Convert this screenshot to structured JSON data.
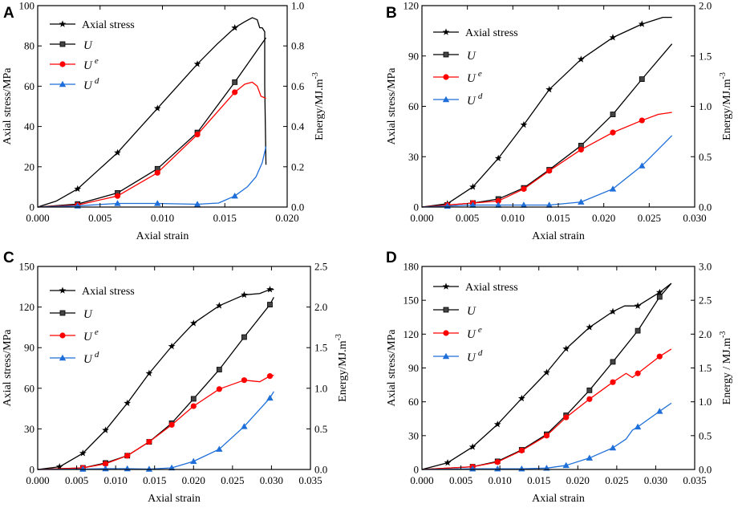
{
  "chart_data": [
    {
      "panel": "A",
      "type": "line",
      "xlabel": "Axial strain",
      "ylabel_left": "Axial stress/MPa",
      "ylabel_right": "Energy/MJ.m",
      "ylabel_right_sup": "-3",
      "xlim": [
        0,
        0.02
      ],
      "xticks": [
        "0.000",
        "0.005",
        "0.010",
        "0.015",
        "0.020"
      ],
      "ylim_left": [
        0,
        100
      ],
      "yticks_left": [
        "0",
        "20",
        "40",
        "60",
        "80",
        "100"
      ],
      "ylim_right": [
        0,
        1.0
      ],
      "yticks_right": [
        "0.0",
        "0.2",
        "0.4",
        "0.6",
        "0.8",
        "1.0"
      ],
      "legend": [
        "Axial stress",
        "U",
        "U e",
        "U d"
      ],
      "series": [
        {
          "name": "Axial stress",
          "axis": "left",
          "color": "#000000",
          "marker": "star",
          "x": [
            0,
            0.0015,
            0.0032,
            0.0048,
            0.0064,
            0.008,
            0.0096,
            0.0112,
            0.0128,
            0.0144,
            0.0158,
            0.0166,
            0.0172,
            0.0176,
            0.0178,
            0.018,
            0.0182,
            0.0182,
            0.0183
          ],
          "y": [
            0,
            3,
            9,
            18,
            27,
            38,
            49,
            60,
            71,
            81,
            89,
            92,
            94,
            93,
            89,
            89,
            87,
            60,
            21
          ],
          "markers_x": [
            0.0032,
            0.0064,
            0.0096,
            0.0128,
            0.0158
          ]
        },
        {
          "name": "U",
          "axis": "right",
          "color": "#000000",
          "marker": "square",
          "x": [
            0,
            0.0032,
            0.0064,
            0.0096,
            0.0128,
            0.0158,
            0.0183
          ],
          "y": [
            0,
            0.015,
            0.07,
            0.19,
            0.37,
            0.62,
            0.84
          ],
          "markers_x": [
            0.0032,
            0.0064,
            0.0096,
            0.0128,
            0.0158
          ]
        },
        {
          "name": "U e",
          "axis": "right",
          "color": "#ff0000",
          "marker": "circle",
          "x": [
            0,
            0.0032,
            0.0064,
            0.0096,
            0.0128,
            0.0158,
            0.0166,
            0.0172,
            0.0176,
            0.0179,
            0.0183
          ],
          "y": [
            0,
            0.01,
            0.055,
            0.17,
            0.36,
            0.57,
            0.61,
            0.62,
            0.6,
            0.55,
            0.54
          ],
          "markers_x": [
            0.0032,
            0.0064,
            0.0096,
            0.0128,
            0.0158
          ]
        },
        {
          "name": "U d",
          "axis": "right",
          "color": "#1e6fd9",
          "marker": "triangle",
          "x": [
            0,
            0.0032,
            0.0064,
            0.0096,
            0.0128,
            0.0145,
            0.0158,
            0.0168,
            0.0175,
            0.018,
            0.0183
          ],
          "y": [
            0,
            0.006,
            0.018,
            0.018,
            0.014,
            0.02,
            0.055,
            0.1,
            0.15,
            0.22,
            0.3
          ],
          "markers_x": [
            0.0032,
            0.0064,
            0.0096,
            0.0128,
            0.0158
          ]
        }
      ]
    },
    {
      "panel": "B",
      "type": "line",
      "xlabel": "Axial strain",
      "ylabel_left": "Axial stress/MPa",
      "ylabel_right": "Energy/MJ.m",
      "ylabel_right_sup": "-3",
      "xlim": [
        0,
        0.03
      ],
      "xticks": [
        "0.000",
        "0.005",
        "0.010",
        "0.015",
        "0.020",
        "0.025",
        "0.030"
      ],
      "ylim_left": [
        0,
        120
      ],
      "yticks_left": [
        "0",
        "30",
        "60",
        "90",
        "120"
      ],
      "ylim_right": [
        0,
        2.0
      ],
      "yticks_right": [
        "0.0",
        "0.5",
        "1.0",
        "1.5",
        "2.0"
      ],
      "legend": [
        "Axial stress",
        "U",
        "U e",
        "U d"
      ],
      "series": [
        {
          "name": "Axial stress",
          "axis": "left",
          "color": "#000000",
          "marker": "star",
          "x": [
            0,
            0.0028,
            0.0056,
            0.0084,
            0.0112,
            0.014,
            0.0175,
            0.021,
            0.0242,
            0.0265,
            0.0275
          ],
          "y": [
            0,
            2,
            12,
            29,
            49,
            70,
            88,
            101,
            109,
            113,
            113
          ],
          "markers_x": [
            0.0028,
            0.0056,
            0.0084,
            0.0112,
            0.014,
            0.0175,
            0.021,
            0.0242
          ]
        },
        {
          "name": "U",
          "axis": "right",
          "color": "#000000",
          "marker": "square",
          "x": [
            0,
            0.0028,
            0.0056,
            0.0084,
            0.0112,
            0.014,
            0.0175,
            0.021,
            0.0242,
            0.0275
          ],
          "y": [
            0,
            0.02,
            0.04,
            0.08,
            0.19,
            0.37,
            0.61,
            0.92,
            1.27,
            1.62
          ],
          "markers_x": [
            0.0028,
            0.0056,
            0.0084,
            0.0112,
            0.014,
            0.0175,
            0.021,
            0.0242
          ]
        },
        {
          "name": "U e",
          "axis": "right",
          "color": "#ff0000",
          "marker": "circle",
          "x": [
            0,
            0.0028,
            0.0056,
            0.0084,
            0.0112,
            0.014,
            0.0175,
            0.021,
            0.0242,
            0.026,
            0.0275
          ],
          "y": [
            0,
            0.02,
            0.04,
            0.06,
            0.18,
            0.36,
            0.57,
            0.74,
            0.86,
            0.92,
            0.94
          ],
          "markers_x": [
            0.0028,
            0.0056,
            0.0084,
            0.0112,
            0.014,
            0.0175,
            0.021,
            0.0242
          ]
        },
        {
          "name": "U d",
          "axis": "right",
          "color": "#1e6fd9",
          "marker": "triangle",
          "x": [
            0,
            0.0028,
            0.0056,
            0.0084,
            0.0112,
            0.014,
            0.0175,
            0.021,
            0.0242,
            0.0275
          ],
          "y": [
            0,
            0.01,
            0.02,
            0.02,
            0.02,
            0.02,
            0.05,
            0.18,
            0.41,
            0.71
          ],
          "markers_x": [
            0.0028,
            0.0056,
            0.0084,
            0.0112,
            0.014,
            0.0175,
            0.021,
            0.0242
          ]
        }
      ]
    },
    {
      "panel": "C",
      "type": "line",
      "xlabel": "Axial strain",
      "ylabel_left": "Axial stress/MPa",
      "ylabel_right": "Energy/MJ.m",
      "ylabel_right_sup": "-3",
      "xlim": [
        0,
        0.035
      ],
      "xticks": [
        "0.000",
        "0.005",
        "0.010",
        "0.015",
        "0.020",
        "0.025",
        "0.030",
        "0.035"
      ],
      "ylim_left": [
        0,
        150
      ],
      "yticks_left": [
        "0",
        "30",
        "60",
        "90",
        "120",
        "150"
      ],
      "ylim_right": [
        0,
        2.5
      ],
      "yticks_right": [
        "0.0",
        "0.5",
        "1.0",
        "1.5",
        "2.0",
        "2.5"
      ],
      "legend": [
        "Axial stress",
        "U",
        "U e",
        "U d"
      ],
      "series": [
        {
          "name": "Axial stress",
          "axis": "left",
          "color": "#000000",
          "marker": "star",
          "x": [
            0,
            0.0028,
            0.0058,
            0.0087,
            0.0115,
            0.0143,
            0.0172,
            0.02,
            0.0233,
            0.0265,
            0.0285,
            0.0298,
            0.0303
          ],
          "y": [
            0,
            2,
            12,
            29,
            49,
            71,
            91,
            108,
            121,
            129,
            130,
            133,
            133
          ],
          "markers_x": [
            0.0028,
            0.0058,
            0.0087,
            0.0115,
            0.0143,
            0.0172,
            0.02,
            0.0233,
            0.0265,
            0.0298
          ]
        },
        {
          "name": "U",
          "axis": "right",
          "color": "#000000",
          "marker": "square",
          "x": [
            0,
            0.0058,
            0.0087,
            0.0115,
            0.0143,
            0.0172,
            0.02,
            0.0233,
            0.0265,
            0.0298,
            0.0303
          ],
          "y": [
            0,
            0.02,
            0.08,
            0.17,
            0.34,
            0.57,
            0.87,
            1.23,
            1.63,
            2.03,
            2.12
          ],
          "markers_x": [
            0.0058,
            0.0087,
            0.0115,
            0.0143,
            0.0172,
            0.02,
            0.0233,
            0.0265,
            0.0298
          ]
        },
        {
          "name": "U e",
          "axis": "right",
          "color": "#ff0000",
          "marker": "circle",
          "x": [
            0,
            0.0058,
            0.0087,
            0.0115,
            0.0143,
            0.0172,
            0.02,
            0.0233,
            0.0265,
            0.0285,
            0.0298,
            0.0303
          ],
          "y": [
            0,
            0.02,
            0.07,
            0.17,
            0.34,
            0.55,
            0.78,
            0.99,
            1.1,
            1.08,
            1.15,
            1.16
          ],
          "markers_x": [
            0.0058,
            0.0087,
            0.0115,
            0.0143,
            0.0172,
            0.02,
            0.0233,
            0.0265,
            0.0298
          ]
        },
        {
          "name": "U d",
          "axis": "right",
          "color": "#1e6fd9",
          "marker": "triangle",
          "x": [
            0,
            0.0058,
            0.0087,
            0.0115,
            0.0143,
            0.0172,
            0.02,
            0.0233,
            0.0265,
            0.0298,
            0.0303
          ],
          "y": [
            0,
            0.005,
            0.01,
            0.01,
            0.005,
            0.02,
            0.1,
            0.25,
            0.53,
            0.88,
            0.96
          ],
          "markers_x": [
            0.0058,
            0.0087,
            0.0115,
            0.0143,
            0.0172,
            0.02,
            0.0233,
            0.0265,
            0.0298
          ]
        }
      ]
    },
    {
      "panel": "D",
      "type": "line",
      "xlabel": "Axial strain",
      "ylabel_left": "Axial stress/MPa",
      "ylabel_right": "Energy / MJ.m",
      "ylabel_right_sup": "-3",
      "xlim": [
        0,
        0.035
      ],
      "xticks": [
        "0.000",
        "0.005",
        "0.010",
        "0.015",
        "0.020",
        "0.025",
        "0.030",
        "0.035"
      ],
      "ylim_left": [
        0,
        180
      ],
      "yticks_left": [
        "0",
        "30",
        "60",
        "90",
        "120",
        "150",
        "180"
      ],
      "ylim_right": [
        0,
        3.0
      ],
      "yticks_right": [
        "0.0",
        "0.5",
        "1.0",
        "1.5",
        "2.0",
        "2.5",
        "3.0"
      ],
      "legend": [
        "Axial stress",
        "U",
        "U e",
        "U d"
      ],
      "series": [
        {
          "name": "Axial stress",
          "axis": "left",
          "color": "#000000",
          "marker": "star",
          "x": [
            0,
            0.0033,
            0.0065,
            0.0097,
            0.0128,
            0.016,
            0.0185,
            0.0215,
            0.0245,
            0.026,
            0.0277,
            0.0305,
            0.032
          ],
          "y": [
            0,
            6,
            20,
            40,
            63,
            86,
            107,
            126,
            140,
            145,
            145,
            157,
            165
          ],
          "markers_x": [
            0.0033,
            0.0065,
            0.0097,
            0.0128,
            0.016,
            0.0185,
            0.0215,
            0.0245,
            0.0277,
            0.0305
          ]
        },
        {
          "name": "U",
          "axis": "right",
          "color": "#000000",
          "marker": "square",
          "x": [
            0,
            0.0065,
            0.0097,
            0.0128,
            0.016,
            0.0185,
            0.0215,
            0.0245,
            0.0277,
            0.0305,
            0.032
          ],
          "y": [
            0,
            0.04,
            0.12,
            0.29,
            0.52,
            0.8,
            1.17,
            1.59,
            2.05,
            2.55,
            2.75
          ],
          "markers_x": [
            0.0065,
            0.0097,
            0.0128,
            0.016,
            0.0185,
            0.0215,
            0.0245,
            0.0277,
            0.0305
          ]
        },
        {
          "name": "U e",
          "axis": "right",
          "color": "#ff0000",
          "marker": "circle",
          "x": [
            0,
            0.0065,
            0.0097,
            0.0128,
            0.016,
            0.0185,
            0.0215,
            0.0245,
            0.0262,
            0.027,
            0.0277,
            0.0305,
            0.032
          ],
          "y": [
            0,
            0.04,
            0.11,
            0.28,
            0.5,
            0.77,
            1.04,
            1.29,
            1.42,
            1.36,
            1.42,
            1.67,
            1.78
          ],
          "markers_x": [
            0.0065,
            0.0097,
            0.0128,
            0.016,
            0.0185,
            0.0215,
            0.0245,
            0.0277,
            0.0305
          ]
        },
        {
          "name": "U d",
          "axis": "right",
          "color": "#1e6fd9",
          "marker": "triangle",
          "x": [
            0,
            0.0065,
            0.0097,
            0.0128,
            0.016,
            0.0185,
            0.0215,
            0.0245,
            0.0262,
            0.027,
            0.0277,
            0.0305,
            0.032
          ],
          "y": [
            0,
            0.01,
            0.01,
            0.01,
            0.02,
            0.06,
            0.17,
            0.32,
            0.45,
            0.58,
            0.63,
            0.86,
            0.98
          ],
          "markers_x": [
            0.0065,
            0.0097,
            0.0128,
            0.016,
            0.0185,
            0.0215,
            0.0245,
            0.0277,
            0.0305
          ]
        }
      ]
    }
  ]
}
